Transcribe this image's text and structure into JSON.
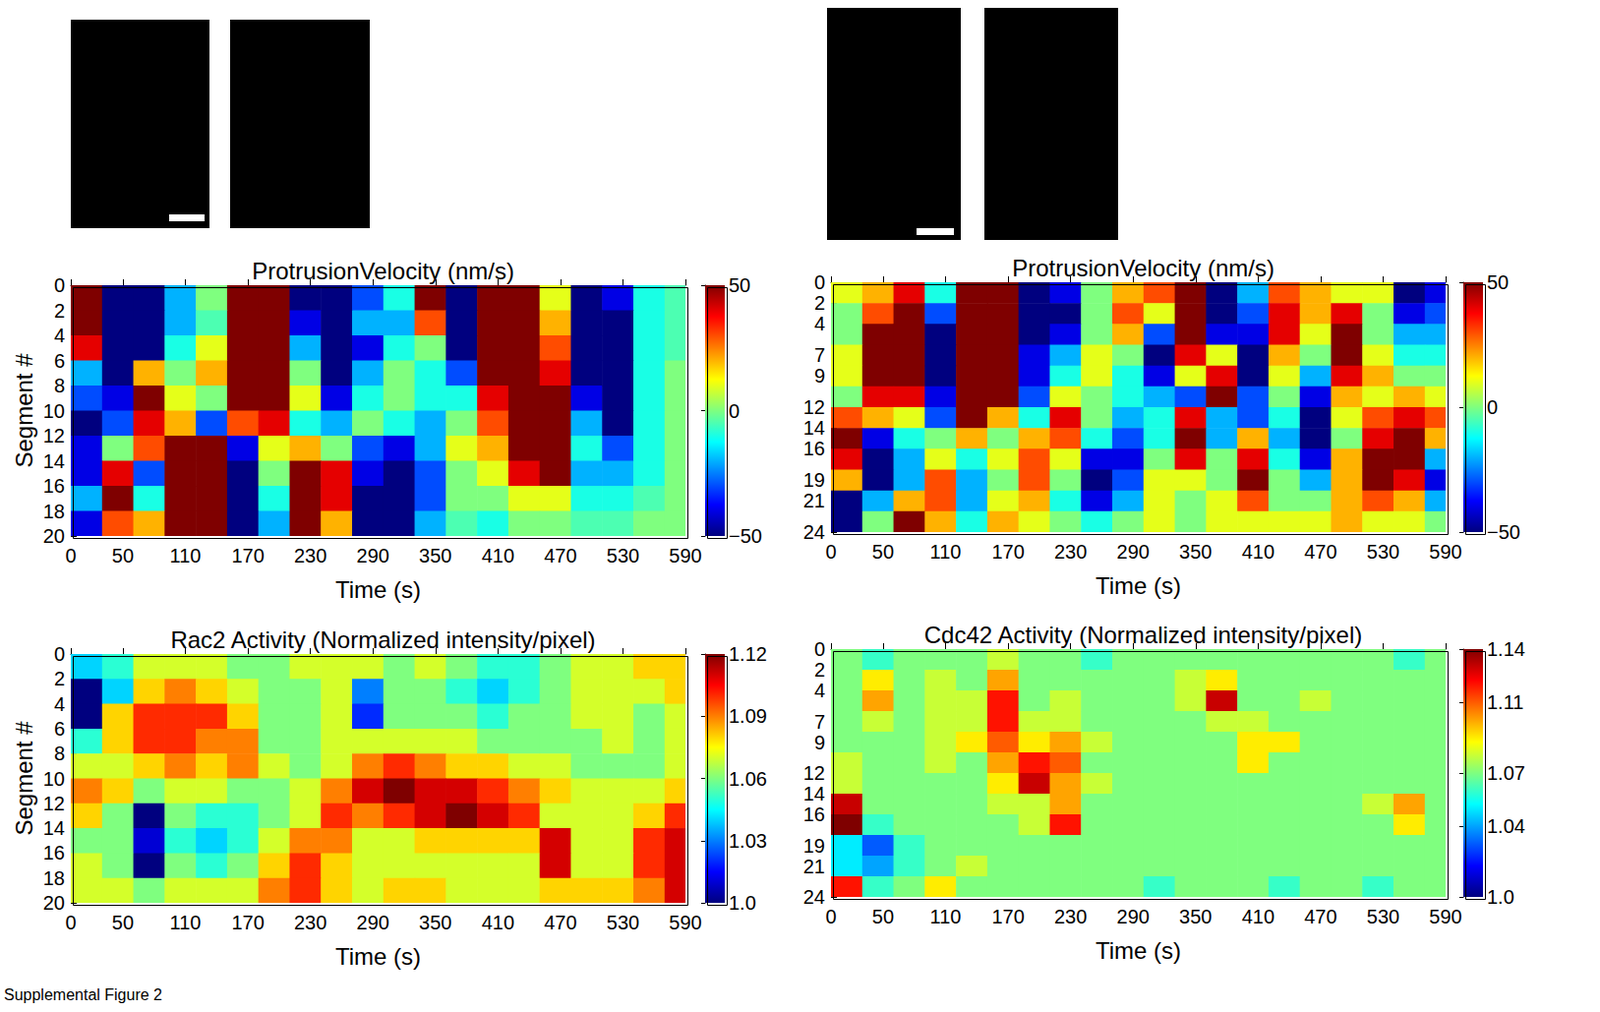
{
  "caption": "Supplemental Figure 2",
  "chart_data": [
    {
      "type": "heatmap",
      "title": "ProtrusionVelocity (nm/s)",
      "xlabel": "Time (s)",
      "ylabel": "Segment #",
      "xlim": [
        0,
        590
      ],
      "ylim": [
        20,
        0
      ],
      "xticks": [
        0,
        50,
        110,
        170,
        230,
        290,
        350,
        410,
        470,
        530,
        590
      ],
      "yticks": [
        0,
        2,
        4,
        6,
        8,
        10,
        12,
        14,
        16,
        18,
        20
      ],
      "x_edges": [
        0,
        30,
        60,
        90,
        120,
        150,
        180,
        210,
        240,
        270,
        300,
        330,
        360,
        390,
        420,
        450,
        480,
        510,
        540,
        570,
        590
      ],
      "y_edges": [
        0,
        2,
        4,
        6,
        8,
        10,
        12,
        14,
        16,
        18,
        20
      ],
      "cells": [
        [
          50,
          -50,
          -50,
          -20,
          0,
          50,
          50,
          -50,
          -50,
          -30,
          -10,
          50,
          -50,
          50,
          50,
          10,
          -50,
          -40,
          -10,
          -5
        ],
        [
          50,
          -50,
          -50,
          -20,
          -5,
          50,
          50,
          -40,
          -50,
          -20,
          -20,
          30,
          -50,
          50,
          50,
          20,
          -50,
          -50,
          -10,
          -5
        ],
        [
          40,
          -50,
          -50,
          -10,
          10,
          50,
          50,
          -20,
          -50,
          -40,
          -10,
          0,
          -50,
          50,
          50,
          30,
          -50,
          -50,
          -10,
          -5
        ],
        [
          -20,
          -50,
          20,
          0,
          20,
          50,
          50,
          0,
          -50,
          -20,
          0,
          -10,
          -30,
          50,
          50,
          40,
          -50,
          -50,
          -10,
          0
        ],
        [
          -30,
          -40,
          50,
          10,
          0,
          50,
          50,
          10,
          -40,
          -10,
          0,
          -10,
          -10,
          40,
          50,
          50,
          -40,
          -50,
          -10,
          0
        ],
        [
          -50,
          -30,
          40,
          20,
          -30,
          30,
          40,
          -10,
          -20,
          0,
          -10,
          -20,
          0,
          30,
          50,
          50,
          -20,
          -50,
          -10,
          0
        ],
        [
          -40,
          0,
          30,
          50,
          50,
          -40,
          10,
          20,
          0,
          -30,
          -40,
          -20,
          10,
          20,
          50,
          50,
          -10,
          -30,
          -10,
          0
        ],
        [
          -40,
          40,
          -30,
          50,
          50,
          -50,
          0,
          50,
          40,
          -40,
          -50,
          -30,
          0,
          10,
          40,
          50,
          -20,
          -20,
          -10,
          0
        ],
        [
          -20,
          50,
          -10,
          50,
          50,
          -50,
          -10,
          50,
          40,
          -50,
          -50,
          -30,
          0,
          0,
          10,
          10,
          -10,
          -10,
          -5,
          0
        ],
        [
          -40,
          30,
          20,
          50,
          50,
          -50,
          -20,
          50,
          20,
          -50,
          -50,
          -20,
          -5,
          -10,
          0,
          0,
          -5,
          -5,
          0,
          0
        ]
      ],
      "colorbar_range": [
        -50,
        50
      ],
      "colorbar_ticks": [
        {
          "value": -50,
          "label": "−50"
        },
        0,
        50
      ]
    },
    {
      "type": "heatmap",
      "title": "Rac2 Activity (Normalized intensity/pixel)",
      "xlabel": "Time (s)",
      "ylabel": "Segment #",
      "xlim": [
        0,
        590
      ],
      "ylim": [
        20,
        0
      ],
      "xticks": [
        0,
        50,
        110,
        170,
        230,
        290,
        350,
        410,
        470,
        530,
        590
      ],
      "yticks": [
        0,
        2,
        4,
        6,
        8,
        10,
        12,
        14,
        16,
        18,
        20
      ],
      "x_edges": [
        0,
        30,
        60,
        90,
        120,
        150,
        180,
        210,
        240,
        270,
        300,
        330,
        360,
        390,
        420,
        450,
        480,
        510,
        540,
        570,
        590
      ],
      "y_edges": [
        0,
        2,
        4,
        6,
        8,
        10,
        12,
        14,
        16,
        18,
        20
      ],
      "cells": [
        [
          1.04,
          1.05,
          1.07,
          1.07,
          1.07,
          1.06,
          1.06,
          1.07,
          1.07,
          1.07,
          1.06,
          1.07,
          1.06,
          1.05,
          1.05,
          1.06,
          1.07,
          1.07,
          1.08,
          1.08
        ],
        [
          1.0,
          1.04,
          1.08,
          1.09,
          1.08,
          1.07,
          1.06,
          1.06,
          1.07,
          1.03,
          1.06,
          1.06,
          1.05,
          1.04,
          1.05,
          1.06,
          1.07,
          1.07,
          1.07,
          1.08
        ],
        [
          1.0,
          1.08,
          1.1,
          1.1,
          1.1,
          1.08,
          1.06,
          1.06,
          1.07,
          1.02,
          1.06,
          1.06,
          1.06,
          1.05,
          1.06,
          1.06,
          1.07,
          1.07,
          1.06,
          1.07
        ],
        [
          1.05,
          1.08,
          1.1,
          1.1,
          1.09,
          1.09,
          1.06,
          1.06,
          1.07,
          1.07,
          1.07,
          1.07,
          1.07,
          1.06,
          1.06,
          1.06,
          1.06,
          1.07,
          1.06,
          1.07
        ],
        [
          1.07,
          1.07,
          1.08,
          1.09,
          1.08,
          1.09,
          1.07,
          1.06,
          1.07,
          1.09,
          1.1,
          1.09,
          1.08,
          1.08,
          1.07,
          1.07,
          1.06,
          1.06,
          1.06,
          1.07
        ],
        [
          1.09,
          1.08,
          1.06,
          1.07,
          1.07,
          1.06,
          1.06,
          1.07,
          1.09,
          1.11,
          1.12,
          1.11,
          1.11,
          1.1,
          1.09,
          1.08,
          1.07,
          1.07,
          1.07,
          1.08
        ],
        [
          1.08,
          1.06,
          1.0,
          1.06,
          1.05,
          1.05,
          1.06,
          1.07,
          1.1,
          1.09,
          1.1,
          1.11,
          1.12,
          1.11,
          1.1,
          1.07,
          1.07,
          1.07,
          1.08,
          1.1
        ],
        [
          1.06,
          1.06,
          1.01,
          1.05,
          1.04,
          1.05,
          1.07,
          1.09,
          1.09,
          1.07,
          1.07,
          1.08,
          1.08,
          1.08,
          1.08,
          1.11,
          1.07,
          1.07,
          1.1,
          1.11
        ],
        [
          1.07,
          1.06,
          1.0,
          1.06,
          1.05,
          1.06,
          1.08,
          1.1,
          1.08,
          1.07,
          1.07,
          1.07,
          1.07,
          1.07,
          1.07,
          1.11,
          1.07,
          1.07,
          1.1,
          1.11
        ],
        [
          1.07,
          1.07,
          1.06,
          1.07,
          1.07,
          1.07,
          1.09,
          1.1,
          1.08,
          1.07,
          1.08,
          1.08,
          1.07,
          1.07,
          1.07,
          1.08,
          1.08,
          1.08,
          1.09,
          1.11
        ]
      ],
      "colorbar_range": [
        1.0,
        1.12
      ],
      "colorbar_ticks": [
        {
          "value": 1.0,
          "label": "1.0"
        },
        1.03,
        1.06,
        1.09,
        1.12
      ]
    },
    {
      "type": "heatmap",
      "title": "ProtrusionVelocity (nm/s)",
      "xlabel": "Time (s)",
      "xlim": [
        0,
        590
      ],
      "ylim": [
        24,
        0
      ],
      "xticks": [
        0,
        50,
        110,
        170,
        230,
        290,
        350,
        410,
        470,
        530,
        590
      ],
      "yticks": [
        0,
        2,
        4,
        7,
        9,
        12,
        14,
        16,
        19,
        21,
        24
      ],
      "x_edges": [
        0,
        30,
        60,
        90,
        120,
        150,
        180,
        210,
        240,
        270,
        300,
        330,
        360,
        390,
        420,
        450,
        480,
        510,
        540,
        570,
        590
      ],
      "y_edges": [
        0,
        2,
        4,
        6,
        8,
        10,
        12,
        14,
        16,
        18,
        20,
        22,
        24
      ],
      "cells": [
        [
          10,
          20,
          40,
          -10,
          50,
          50,
          -50,
          -40,
          0,
          20,
          30,
          50,
          -50,
          -20,
          30,
          20,
          10,
          10,
          -50,
          -40
        ],
        [
          0,
          30,
          50,
          -30,
          50,
          50,
          -50,
          -50,
          0,
          30,
          10,
          50,
          -50,
          -30,
          40,
          20,
          40,
          0,
          -40,
          -30
        ],
        [
          0,
          50,
          50,
          -50,
          50,
          50,
          -50,
          -40,
          0,
          20,
          -30,
          50,
          -40,
          -40,
          40,
          10,
          50,
          0,
          -20,
          -20
        ],
        [
          10,
          50,
          50,
          -50,
          50,
          50,
          -40,
          -20,
          10,
          0,
          -50,
          40,
          10,
          -50,
          20,
          0,
          50,
          10,
          -10,
          -10
        ],
        [
          10,
          50,
          50,
          -50,
          50,
          50,
          -40,
          -10,
          10,
          -10,
          -40,
          10,
          40,
          -50,
          10,
          -20,
          40,
          20,
          0,
          0
        ],
        [
          0,
          40,
          40,
          -40,
          50,
          50,
          -30,
          10,
          0,
          -10,
          -20,
          -30,
          50,
          -30,
          0,
          -40,
          20,
          10,
          20,
          10
        ],
        [
          30,
          20,
          10,
          -30,
          50,
          20,
          -10,
          40,
          0,
          -20,
          -10,
          40,
          -20,
          -30,
          -10,
          -50,
          10,
          30,
          40,
          30
        ],
        [
          50,
          -40,
          -10,
          0,
          20,
          0,
          20,
          30,
          -10,
          -30,
          -10,
          50,
          -20,
          20,
          -20,
          -50,
          0,
          40,
          50,
          20
        ],
        [
          40,
          -50,
          -20,
          10,
          -10,
          10,
          30,
          10,
          -40,
          -40,
          0,
          40,
          0,
          40,
          -10,
          -40,
          20,
          50,
          50,
          -20
        ],
        [
          20,
          -50,
          -20,
          30,
          -20,
          0,
          30,
          0,
          -50,
          -30,
          10,
          10,
          0,
          50,
          0,
          -20,
          20,
          50,
          40,
          -40
        ],
        [
          -50,
          -20,
          20,
          30,
          -20,
          10,
          20,
          -10,
          -40,
          -20,
          10,
          0,
          10,
          30,
          0,
          0,
          20,
          30,
          20,
          -20
        ],
        [
          -50,
          0,
          50,
          20,
          -10,
          20,
          10,
          0,
          -10,
          0,
          10,
          0,
          10,
          10,
          10,
          10,
          20,
          10,
          10,
          0
        ]
      ],
      "colorbar_range": [
        -50,
        50
      ],
      "colorbar_ticks": [
        {
          "value": -50,
          "label": "−50"
        },
        0,
        50
      ]
    },
    {
      "type": "heatmap",
      "title": "Cdc42 Activity (Normalized intensity/pixel)",
      "xlabel": "Time (s)",
      "xlim": [
        0,
        590
      ],
      "ylim": [
        24,
        0
      ],
      "xticks": [
        0,
        50,
        110,
        170,
        230,
        290,
        350,
        410,
        470,
        530,
        590
      ],
      "yticks": [
        0,
        2,
        4,
        7,
        9,
        12,
        14,
        16,
        19,
        21,
        24
      ],
      "x_edges": [
        0,
        30,
        60,
        90,
        120,
        150,
        180,
        210,
        240,
        270,
        300,
        330,
        360,
        390,
        420,
        450,
        480,
        510,
        540,
        570,
        590
      ],
      "y_edges": [
        0,
        2,
        4,
        6,
        8,
        10,
        12,
        14,
        16,
        18,
        20,
        22,
        24
      ],
      "cells": [
        [
          1.07,
          1.06,
          1.07,
          1.07,
          1.07,
          1.08,
          1.07,
          1.07,
          1.06,
          1.07,
          1.07,
          1.07,
          1.07,
          1.07,
          1.07,
          1.07,
          1.07,
          1.07,
          1.06,
          1.07
        ],
        [
          1.07,
          1.09,
          1.07,
          1.08,
          1.07,
          1.1,
          1.07,
          1.07,
          1.07,
          1.07,
          1.07,
          1.08,
          1.09,
          1.07,
          1.07,
          1.07,
          1.07,
          1.07,
          1.07,
          1.07
        ],
        [
          1.07,
          1.1,
          1.07,
          1.08,
          1.08,
          1.12,
          1.07,
          1.08,
          1.07,
          1.07,
          1.07,
          1.08,
          1.13,
          1.07,
          1.07,
          1.08,
          1.07,
          1.07,
          1.07,
          1.07
        ],
        [
          1.07,
          1.08,
          1.07,
          1.08,
          1.08,
          1.12,
          1.08,
          1.08,
          1.07,
          1.07,
          1.07,
          1.07,
          1.08,
          1.08,
          1.07,
          1.07,
          1.07,
          1.07,
          1.07,
          1.07
        ],
        [
          1.07,
          1.07,
          1.07,
          1.08,
          1.09,
          1.11,
          1.09,
          1.1,
          1.08,
          1.07,
          1.07,
          1.07,
          1.07,
          1.09,
          1.09,
          1.07,
          1.07,
          1.07,
          1.07,
          1.07
        ],
        [
          1.08,
          1.07,
          1.07,
          1.08,
          1.07,
          1.1,
          1.12,
          1.11,
          1.07,
          1.07,
          1.07,
          1.07,
          1.07,
          1.09,
          1.07,
          1.07,
          1.07,
          1.07,
          1.07,
          1.07
        ],
        [
          1.08,
          1.07,
          1.07,
          1.07,
          1.07,
          1.09,
          1.13,
          1.1,
          1.08,
          1.07,
          1.07,
          1.07,
          1.07,
          1.07,
          1.07,
          1.07,
          1.07,
          1.07,
          1.07,
          1.07
        ],
        [
          1.13,
          1.07,
          1.07,
          1.07,
          1.07,
          1.08,
          1.08,
          1.1,
          1.07,
          1.07,
          1.07,
          1.07,
          1.07,
          1.07,
          1.07,
          1.07,
          1.07,
          1.08,
          1.1,
          1.07
        ],
        [
          1.14,
          1.06,
          1.07,
          1.07,
          1.07,
          1.07,
          1.08,
          1.12,
          1.07,
          1.07,
          1.07,
          1.07,
          1.07,
          1.07,
          1.07,
          1.07,
          1.07,
          1.07,
          1.09,
          1.07
        ],
        [
          1.05,
          1.03,
          1.06,
          1.07,
          1.07,
          1.07,
          1.07,
          1.07,
          1.07,
          1.07,
          1.07,
          1.07,
          1.07,
          1.07,
          1.07,
          1.07,
          1.07,
          1.07,
          1.07,
          1.07
        ],
        [
          1.05,
          1.04,
          1.06,
          1.07,
          1.08,
          1.07,
          1.07,
          1.07,
          1.07,
          1.07,
          1.07,
          1.07,
          1.07,
          1.07,
          1.07,
          1.07,
          1.07,
          1.07,
          1.07,
          1.07
        ],
        [
          1.12,
          1.06,
          1.07,
          1.09,
          1.07,
          1.07,
          1.07,
          1.07,
          1.07,
          1.07,
          1.06,
          1.07,
          1.07,
          1.07,
          1.06,
          1.07,
          1.07,
          1.06,
          1.07,
          1.07
        ]
      ],
      "colorbar_range": [
        1.0,
        1.14
      ],
      "colorbar_ticks": [
        {
          "value": 1.0,
          "label": "1.0"
        },
        1.04,
        1.07,
        1.11,
        1.14
      ]
    }
  ]
}
